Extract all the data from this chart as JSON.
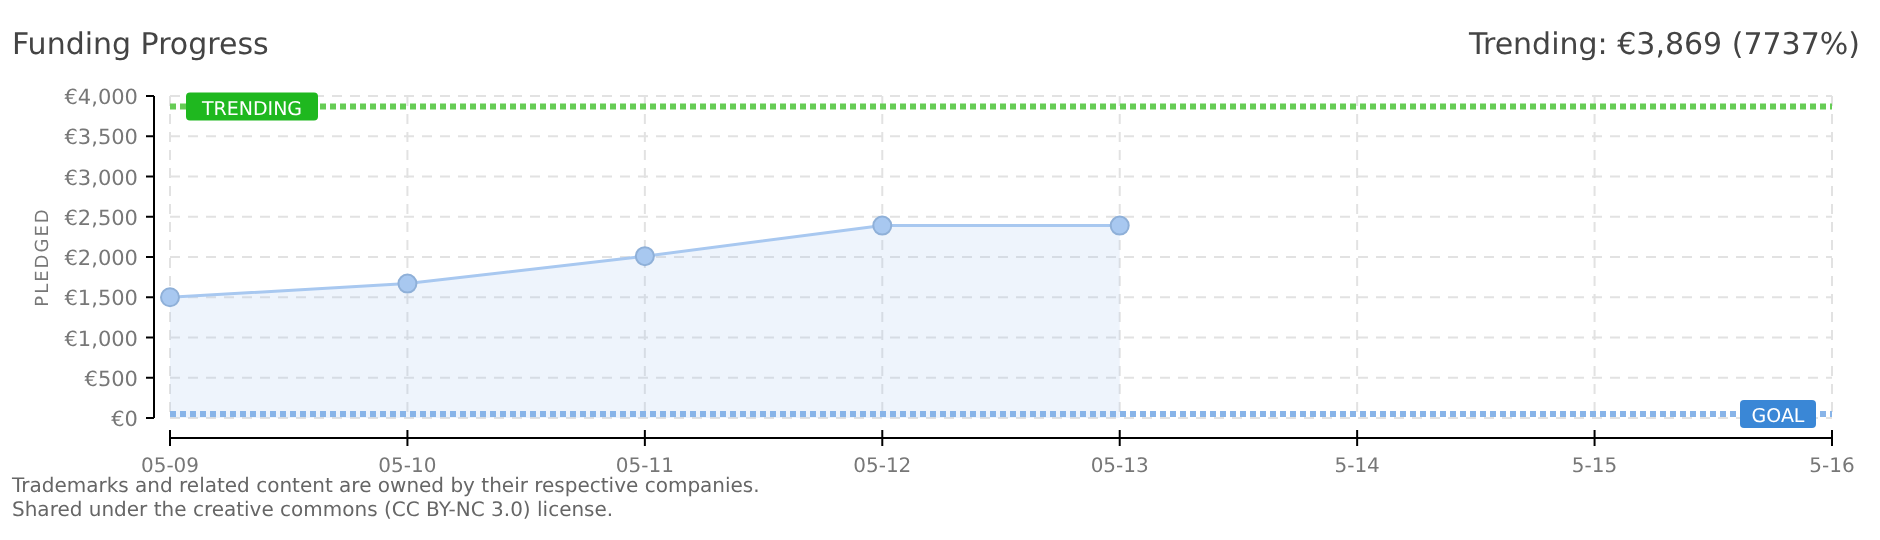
{
  "chart_data": {
    "type": "area",
    "title": "Funding Progress",
    "subtitle": "Trending: €3,869 (7737%)",
    "ylabel": "PLEDGED",
    "categories": [
      "05-09",
      "05-10",
      "05-11",
      "05-12",
      "05-13",
      "5-14",
      "5-15",
      "5-16"
    ],
    "series": [
      {
        "color": "#a8c8f0",
        "values": [
          1500,
          1670,
          2010,
          2390,
          2390,
          null,
          null,
          null
        ]
      }
    ],
    "ylim": [
      0,
      4000
    ],
    "yticks": [
      {
        "value": 0,
        "label": "€0"
      },
      {
        "value": 500,
        "label": "€500"
      },
      {
        "value": 1000,
        "label": "€1,000"
      },
      {
        "value": 1500,
        "label": "€1,500"
      },
      {
        "value": 2000,
        "label": "€2,000"
      },
      {
        "value": 2500,
        "label": "€2,500"
      },
      {
        "value": 3000,
        "label": "€3,000"
      },
      {
        "value": 3500,
        "label": "€3,500"
      },
      {
        "value": 4000,
        "label": "€4,000"
      }
    ],
    "ref_lines": [
      {
        "axis": "y",
        "value": 3869,
        "label": "TRENDING",
        "color": "#66cc55",
        "line_style": "dotted"
      },
      {
        "axis": "y",
        "value": 50,
        "label": "GOAL",
        "color": "#88b4e8",
        "line_style": "dotted"
      }
    ],
    "grid": true,
    "marker": "circle",
    "annotations": [
      "Trademarks and related content are owned by their respective companies.",
      "Shared under the creative commons (CC BY-NC 3.0) license."
    ]
  }
}
